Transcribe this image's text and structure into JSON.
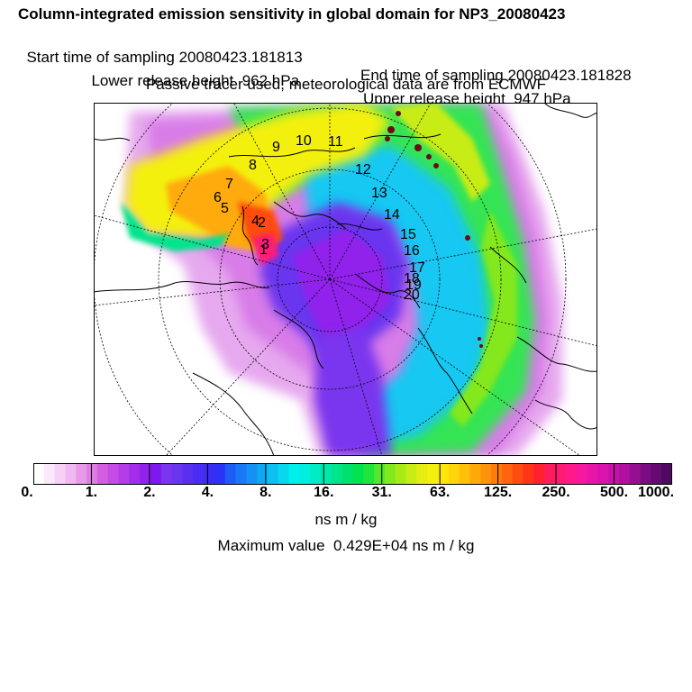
{
  "title": "Column-integrated emission sensitivity in global domain for NP3_20080423",
  "sampling": {
    "start": "Start time of sampling 20080423.181813",
    "end": "End time of sampling 20080423.181828"
  },
  "release": {
    "lower": "Lower release height  962 hPa",
    "upper": "Upper release height  947 hPa"
  },
  "tracer_note": "Passive tracer used, meteorological data are from ECMWF",
  "colorbar": {
    "tick_labels": [
      "0.",
      "1.",
      "2.",
      "4.",
      "8.",
      "16.",
      "31.",
      "63.",
      "125.",
      "250.",
      "500.",
      "1000."
    ],
    "colors": [
      "#ffffff",
      "#fbe8fb",
      "#f6d0f6",
      "#f0b8f0",
      "#e79ae8",
      "#dd7ce2",
      "#d25fe0",
      "#c44be3",
      "#b53ce6",
      "#a22ee9",
      "#9022ec",
      "#7e18ef",
      "#7a35ee",
      "#6a35ee",
      "#5a2ff0",
      "#4a2df2",
      "#3a2df4",
      "#2a33f6",
      "#1f5cf5",
      "#1a78f5",
      "#1590f3",
      "#10a8f2",
      "#0cc0f0",
      "#08d8ee",
      "#00f0ee",
      "#00eedc",
      "#00ecc4",
      "#00e8a8",
      "#00e48a",
      "#00e06c",
      "#00e24e",
      "#20e43a",
      "#52e62c",
      "#84e81e",
      "#a8ea18",
      "#c8ec14",
      "#e4ee10",
      "#f4f00c",
      "#ffe60a",
      "#ffd40a",
      "#ffc00a",
      "#ffaa0a",
      "#ff940a",
      "#ff7c0c",
      "#ff640e",
      "#ff4c10",
      "#ff3418",
      "#ff2030",
      "#ff1c5c",
      "#ff1a74",
      "#ff1a8c",
      "#f818a0",
      "#e816a8",
      "#d814ac",
      "#c612a8",
      "#b010a0",
      "#960e92",
      "#7c0c82",
      "#640a70",
      "#500860"
    ]
  },
  "units": "ns m / kg",
  "max_value": "Maximum value  0.429E+04 ns m / kg",
  "day_labels": [
    "1",
    "2",
    "3",
    "4",
    "5",
    "6",
    "7",
    "8",
    "9",
    "10",
    "11",
    "12",
    "13",
    "14",
    "15",
    "16",
    "17",
    "18",
    "19",
    "20"
  ]
}
